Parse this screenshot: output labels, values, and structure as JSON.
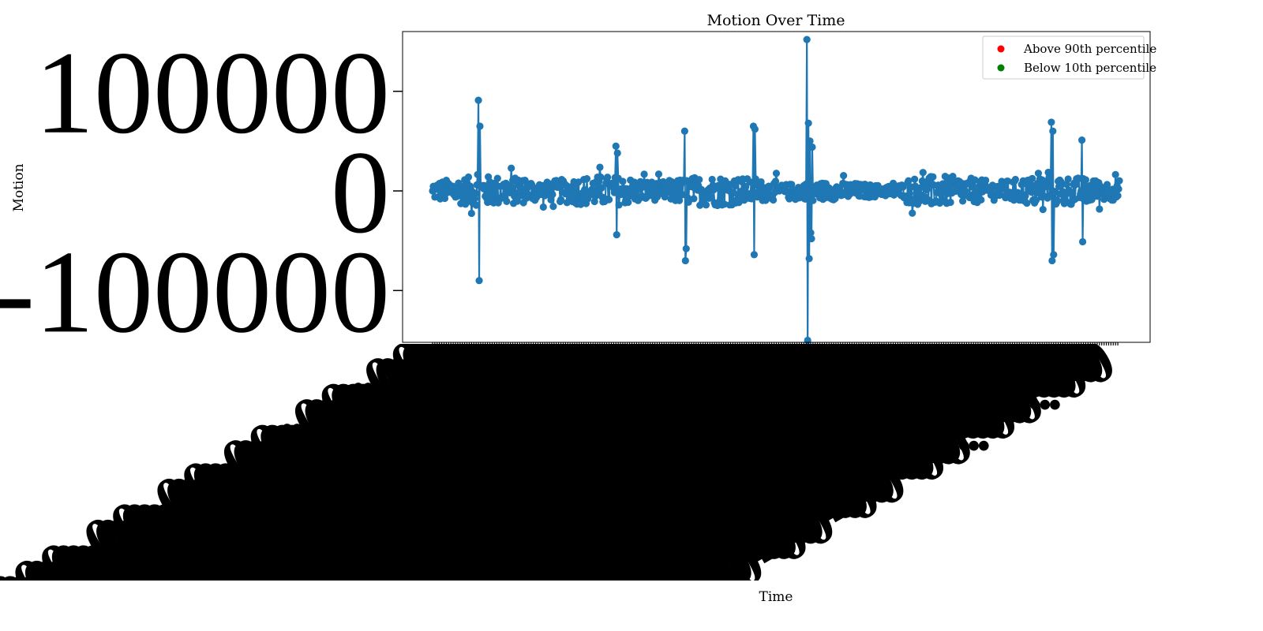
{
  "chart_data": {
    "type": "line",
    "title": "Motion Over Time",
    "xlabel": "Time",
    "ylabel": "Motion",
    "ylim": [
      -152000,
      160000
    ],
    "yticks": [
      -100000,
      0,
      100000
    ],
    "ytick_labels": [
      "-100000",
      "0",
      "100000"
    ],
    "grid": false,
    "legend_position": "top-right",
    "series": [
      {
        "name": "Above 90th percentile",
        "color": "#ff0000",
        "values": []
      },
      {
        "name": "Below 10th percentile",
        "color": "#008000",
        "values": []
      },
      {
        "color": "#1f77b4",
        "x": [
          0,
          60,
          61,
          62,
          200,
          240,
          241,
          242,
          330,
          331,
          332,
          420,
          421,
          422,
          490,
          491,
          492,
          493,
          494,
          495,
          496,
          497,
          810,
          811,
          812,
          813,
          850,
          851
        ],
        "values": [
          0,
          91000,
          -90000,
          65000,
          0,
          45000,
          -44000,
          38000,
          60000,
          -70000,
          -58000,
          65000,
          -64000,
          62000,
          152000,
          -150000,
          68000,
          -68000,
          50000,
          -42000,
          -48000,
          44000,
          69000,
          -70000,
          60000,
          -64000,
          51000,
          -51000
        ]
      }
    ]
  },
  "colors": {
    "line": "#1f77b4",
    "above": "#ff0000",
    "below": "#008000"
  }
}
